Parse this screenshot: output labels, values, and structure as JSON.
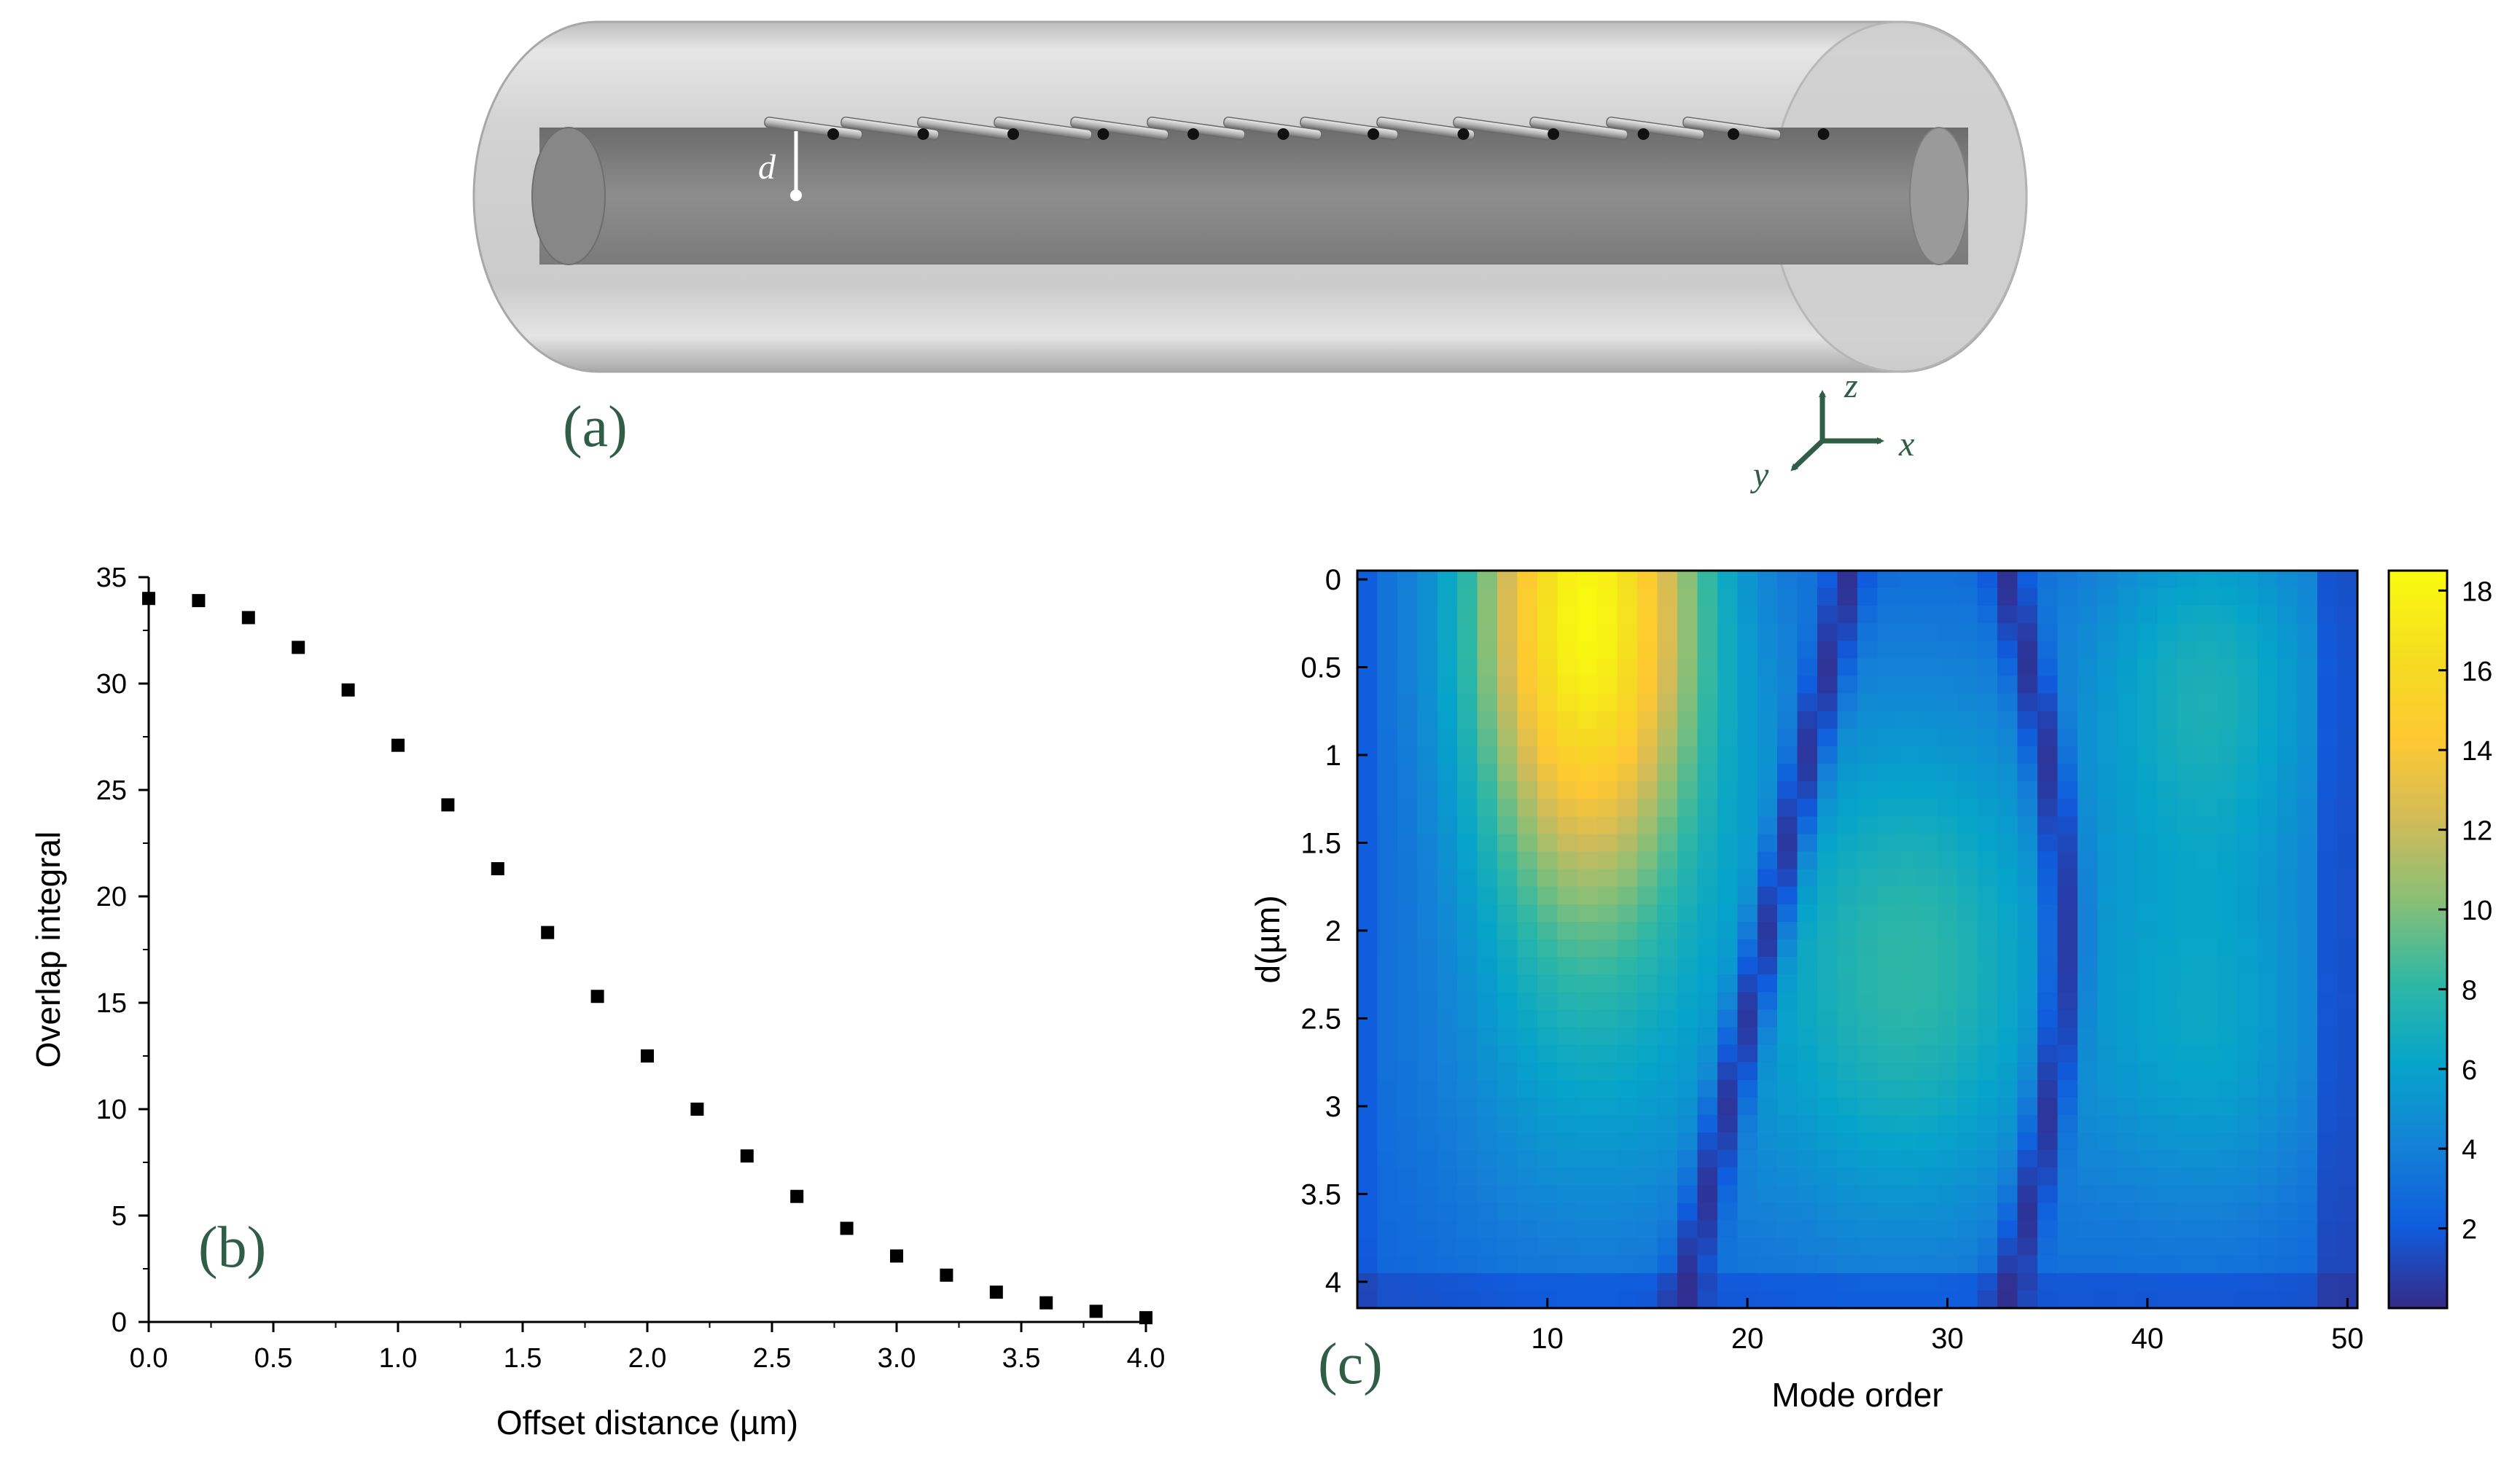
{
  "panel_a": {
    "label": "(a)",
    "offset_symbol": "d",
    "axes": {
      "x": "x",
      "y": "y",
      "z": "z"
    },
    "colors": {
      "cladding": "#c8c8c8",
      "core": "#8a8a8a",
      "label": "#2f5d46"
    }
  },
  "chart_data": [
    {
      "id": "b",
      "type": "scatter",
      "panel_label": "(b)",
      "xlabel": "Offset distance (µm)",
      "ylabel": "Overlap integral",
      "xlim": [
        0,
        4
      ],
      "ylim": [
        0,
        35
      ],
      "xticks": [
        "0.0",
        "0.5",
        "1.0",
        "1.5",
        "2.0",
        "2.5",
        "3.0",
        "3.5",
        "4.0"
      ],
      "yticks": [
        "0",
        "5",
        "10",
        "15",
        "20",
        "25",
        "30",
        "35"
      ],
      "marker": "square",
      "marker_color": "#000000",
      "x": [
        0.0,
        0.2,
        0.4,
        0.6,
        0.8,
        1.0,
        1.2,
        1.4,
        1.6,
        1.8,
        2.0,
        2.2,
        2.4,
        2.6,
        2.8,
        3.0,
        3.2,
        3.4,
        3.6,
        3.8,
        4.0
      ],
      "y": [
        34.0,
        33.9,
        33.1,
        31.7,
        29.7,
        27.1,
        24.3,
        21.3,
        18.3,
        15.3,
        12.5,
        10.0,
        7.8,
        5.9,
        4.4,
        3.1,
        2.2,
        1.4,
        0.9,
        0.5,
        0.2
      ]
    },
    {
      "id": "c",
      "type": "heatmap",
      "panel_label": "(c)",
      "xlabel": "Mode order",
      "ylabel": "d(µm)",
      "xlim": [
        1,
        50
      ],
      "ylim": [
        4.1,
        0
      ],
      "xticks": [
        "10",
        "20",
        "30",
        "40",
        "50"
      ],
      "yticks": [
        "0",
        "0.5",
        "1",
        "1.5",
        "2",
        "2.5",
        "3",
        "3.5",
        "4"
      ],
      "colorbar_ticks": [
        "2",
        "4",
        "6",
        "8",
        "10",
        "12",
        "14",
        "16",
        "18"
      ],
      "colorbar_range": [
        0,
        18.5
      ],
      "colormap": "parula",
      "nx": 50,
      "ny": 42,
      "dy": 0.1,
      "description": "values estimated from the color scale; a bright lobe near mode 12 at small d, two dark diagonal valleys, and secondary lobes near modes 28 and 43",
      "lobes": [
        {
          "mode": 12,
          "d": 0.2,
          "peak": 18.3
        },
        {
          "mode": 28,
          "d": 2.2,
          "peak": 8.0
        },
        {
          "mode": 43,
          "d": 0.6,
          "peak": 7.0
        },
        {
          "mode": 43,
          "d": 2.6,
          "peak": 6.0
        }
      ],
      "valleys": [
        {
          "mode_at_d0": 25,
          "mode_at_d4": 17
        },
        {
          "mode_at_d0": 33,
          "mode_at_d4": 33
        }
      ]
    }
  ]
}
